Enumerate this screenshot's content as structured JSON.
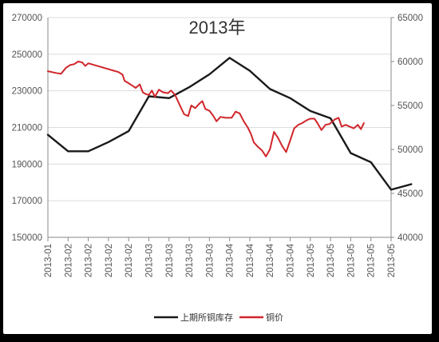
{
  "chart_data": {
    "type": "line",
    "title": "2013年",
    "xlabel": "",
    "ylabel_left": "",
    "ylabel_right": "",
    "x_tick_labels": [
      "2013-01",
      "2013-02",
      "2013-02",
      "2013-02",
      "2013-02",
      "2013-03",
      "2013-03",
      "2013-03",
      "2013-03",
      "2013-04",
      "2013-04",
      "2013-04",
      "2013-04",
      "2013-05",
      "2013-05",
      "2013-05",
      "2013-05",
      "2013-05"
    ],
    "y_left": {
      "ticks": [
        150000,
        170000,
        190000,
        210000,
        230000,
        250000,
        270000
      ],
      "min": 150000,
      "max": 270000
    },
    "y_right": {
      "ticks": [
        40000,
        45000,
        50000,
        55000,
        60000,
        65000
      ],
      "min": 40000,
      "max": 65000
    },
    "grid": true,
    "legend_position": "bottom",
    "series": [
      {
        "name": "上期所铜库存",
        "axis": "left",
        "color": "#1a1a1a",
        "points": [
          [
            0,
            206000
          ],
          [
            1,
            197000
          ],
          [
            2,
            197000
          ],
          [
            3,
            202000
          ],
          [
            4,
            208000
          ],
          [
            5,
            227000
          ],
          [
            6,
            226000
          ],
          [
            7,
            232000
          ],
          [
            8,
            239000
          ],
          [
            9,
            248000
          ],
          [
            10,
            241000
          ],
          [
            11,
            231000
          ],
          [
            12,
            226000
          ],
          [
            13,
            219000
          ],
          [
            14,
            215000
          ],
          [
            15,
            196000
          ],
          [
            16,
            191000
          ],
          [
            17,
            176000
          ],
          [
            18,
            179000
          ]
        ]
      },
      {
        "name": "铜价",
        "axis": "right",
        "color": "#d0262b",
        "points": [
          [
            0,
            58900
          ],
          [
            0.4,
            58700
          ],
          [
            0.65,
            58600
          ],
          [
            0.9,
            59300
          ],
          [
            1.1,
            59600
          ],
          [
            1.3,
            59700
          ],
          [
            1.5,
            60000
          ],
          [
            1.7,
            59900
          ],
          [
            1.85,
            59500
          ],
          [
            2.0,
            59800
          ],
          [
            2.3,
            59600
          ],
          [
            2.6,
            59400
          ],
          [
            2.9,
            59200
          ],
          [
            3.2,
            59000
          ],
          [
            3.5,
            58800
          ],
          [
            3.7,
            58500
          ],
          [
            3.8,
            57800
          ],
          [
            3.95,
            57600
          ],
          [
            4.15,
            57300
          ],
          [
            4.35,
            57000
          ],
          [
            4.55,
            57400
          ],
          [
            4.7,
            56500
          ],
          [
            4.85,
            56300
          ],
          [
            5.0,
            56200
          ],
          [
            5.15,
            56700
          ],
          [
            5.3,
            56000
          ],
          [
            5.5,
            56800
          ],
          [
            5.7,
            56500
          ],
          [
            5.95,
            56400
          ],
          [
            6.1,
            56700
          ],
          [
            6.3,
            56200
          ],
          [
            6.5,
            55200
          ],
          [
            6.75,
            54000
          ],
          [
            6.95,
            53800
          ],
          [
            7.1,
            55000
          ],
          [
            7.3,
            54700
          ],
          [
            7.5,
            55200
          ],
          [
            7.65,
            55500
          ],
          [
            7.8,
            54600
          ],
          [
            8.0,
            54400
          ],
          [
            8.2,
            53800
          ],
          [
            8.35,
            53200
          ],
          [
            8.55,
            53700
          ],
          [
            8.8,
            53600
          ],
          [
            9.1,
            53600
          ],
          [
            9.3,
            54300
          ],
          [
            9.5,
            54100
          ],
          [
            9.7,
            53200
          ],
          [
            9.9,
            52500
          ],
          [
            10.05,
            51800
          ],
          [
            10.2,
            50800
          ],
          [
            10.4,
            50300
          ],
          [
            10.6,
            49900
          ],
          [
            10.8,
            49200
          ],
          [
            11.0,
            50000
          ],
          [
            11.2,
            52000
          ],
          [
            11.4,
            51300
          ],
          [
            11.6,
            50400
          ],
          [
            11.8,
            49700
          ],
          [
            12.0,
            51000
          ],
          [
            12.2,
            52400
          ],
          [
            12.4,
            52800
          ],
          [
            12.6,
            53000
          ],
          [
            12.8,
            53300
          ],
          [
            13.0,
            53500
          ],
          [
            13.2,
            53500
          ],
          [
            13.35,
            53000
          ],
          [
            13.55,
            52200
          ],
          [
            13.75,
            52800
          ],
          [
            13.95,
            52900
          ],
          [
            14.2,
            53400
          ],
          [
            14.4,
            53600
          ],
          [
            14.55,
            52600
          ],
          [
            14.75,
            52800
          ],
          [
            14.95,
            52600
          ],
          [
            15.15,
            52400
          ],
          [
            15.35,
            52800
          ],
          [
            15.5,
            52300
          ],
          [
            15.65,
            53000
          ]
        ]
      }
    ]
  },
  "legend": [
    {
      "label": "上期所铜库存",
      "color": "#1a1a1a"
    },
    {
      "label": "铜价",
      "color": "#d0262b"
    }
  ]
}
